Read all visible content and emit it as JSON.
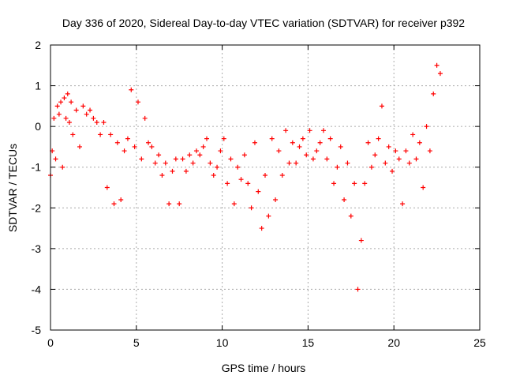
{
  "chart_data": {
    "type": "scatter",
    "title": "Day 336 of 2020, Sidereal Day-to-day VTEC variation (SDTVAR) for receiver p392",
    "xlabel": "GPS time / hours",
    "ylabel": "SDTVAR / TECUs",
    "xlim": [
      0,
      25
    ],
    "ylim": [
      -5,
      2
    ],
    "xticks": [
      0,
      5,
      10,
      15,
      20,
      25
    ],
    "yticks": [
      -5,
      -4,
      -3,
      -2,
      -1,
      0,
      1,
      2
    ],
    "grid": true,
    "marker": "+",
    "series": [
      {
        "name": "SDTVAR",
        "color": "#ff0000",
        "x": [
          0.0,
          0.1,
          0.2,
          0.3,
          0.4,
          0.5,
          0.6,
          0.7,
          0.8,
          0.9,
          1.0,
          1.1,
          1.2,
          1.3,
          1.5,
          1.7,
          1.9,
          2.1,
          2.3,
          2.5,
          2.7,
          2.9,
          3.1,
          3.3,
          3.5,
          3.7,
          3.9,
          4.1,
          4.3,
          4.5,
          4.7,
          4.9,
          5.1,
          5.3,
          5.5,
          5.7,
          5.9,
          6.1,
          6.3,
          6.5,
          6.7,
          6.9,
          7.1,
          7.3,
          7.5,
          7.7,
          7.9,
          8.1,
          8.3,
          8.5,
          8.7,
          8.9,
          9.1,
          9.3,
          9.5,
          9.7,
          9.9,
          10.1,
          10.3,
          10.5,
          10.7,
          10.9,
          11.1,
          11.3,
          11.5,
          11.7,
          11.9,
          12.1,
          12.3,
          12.5,
          12.7,
          12.9,
          13.1,
          13.3,
          13.5,
          13.7,
          13.9,
          14.1,
          14.3,
          14.5,
          14.7,
          14.9,
          15.1,
          15.3,
          15.5,
          15.7,
          15.9,
          16.1,
          16.3,
          16.5,
          16.7,
          16.9,
          17.1,
          17.3,
          17.5,
          17.7,
          17.9,
          18.1,
          18.3,
          18.5,
          18.7,
          18.9,
          19.1,
          19.3,
          19.5,
          19.7,
          19.9,
          20.1,
          20.3,
          20.5,
          20.7,
          20.9,
          21.1,
          21.3,
          21.5,
          21.7,
          21.9,
          22.1,
          22.3,
          22.5,
          22.7
        ],
        "y": [
          -1.2,
          -0.6,
          0.2,
          -0.8,
          0.5,
          0.3,
          0.6,
          -1.0,
          0.7,
          0.2,
          0.8,
          0.1,
          0.6,
          -0.2,
          0.4,
          -0.5,
          0.5,
          0.3,
          0.4,
          0.2,
          0.1,
          -0.2,
          0.1,
          -1.5,
          -0.2,
          -1.9,
          -0.4,
          -1.8,
          -0.6,
          -0.3,
          0.9,
          -0.5,
          0.6,
          -0.8,
          0.2,
          -0.4,
          -0.5,
          -0.9,
          -0.7,
          -1.2,
          -0.9,
          -1.9,
          -1.1,
          -0.8,
          -1.9,
          -0.8,
          -1.1,
          -0.7,
          -0.9,
          -0.6,
          -0.7,
          -0.5,
          -0.3,
          -0.9,
          -1.2,
          -1.0,
          -0.6,
          -0.3,
          -1.4,
          -0.8,
          -1.9,
          -1.0,
          -1.3,
          -0.7,
          -1.4,
          -2.0,
          -0.4,
          -1.6,
          -2.5,
          -1.2,
          -2.2,
          -0.3,
          -1.8,
          -0.6,
          -1.2,
          -0.1,
          -0.9,
          -0.4,
          -0.9,
          -0.5,
          -0.3,
          -0.7,
          -0.1,
          -0.8,
          -0.6,
          -0.4,
          -0.1,
          -0.8,
          -0.3,
          -1.4,
          -1.0,
          -0.5,
          -1.8,
          -0.9,
          -2.2,
          -1.4,
          -4.0,
          -2.8,
          -1.4,
          -0.4,
          -1.0,
          -0.7,
          -0.3,
          0.5,
          -0.9,
          -0.5,
          -1.1,
          -0.6,
          -0.8,
          -1.9,
          -0.6,
          -0.9,
          -0.2,
          -0.8,
          -0.4,
          -1.5,
          0.0,
          -0.6,
          0.8,
          1.5,
          1.3
        ]
      }
    ]
  }
}
